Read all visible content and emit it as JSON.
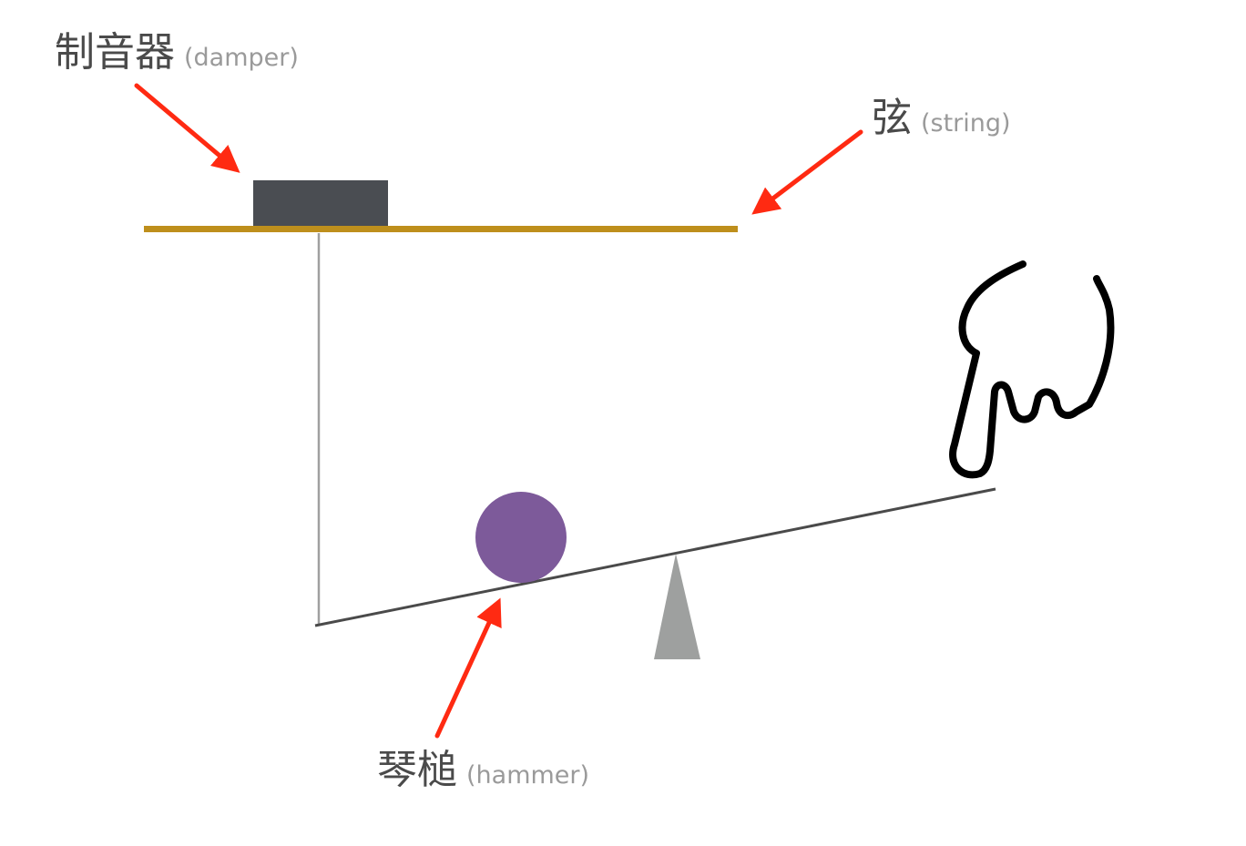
{
  "labels": {
    "damper": {
      "zh": "制音器",
      "en": "(damper)"
    },
    "string": {
      "zh": "弦",
      "en": "(string)"
    },
    "hammer": {
      "zh": "琴槌",
      "en": "(hammer)"
    }
  },
  "parts": {
    "string": {
      "color": "#be8f1c"
    },
    "damper": {
      "color": "#4a4d52"
    },
    "hammer": {
      "color": "#7d5a9a"
    },
    "lever": {
      "color": "#4a4a4a"
    },
    "damper_rod": {
      "color": "#a0a0a0"
    },
    "fulcrum": {
      "color": "#9ea09f"
    }
  },
  "annotations": {
    "arrow_color": "#ff2a12",
    "pointer_icon": "pointing-hand-icon"
  }
}
